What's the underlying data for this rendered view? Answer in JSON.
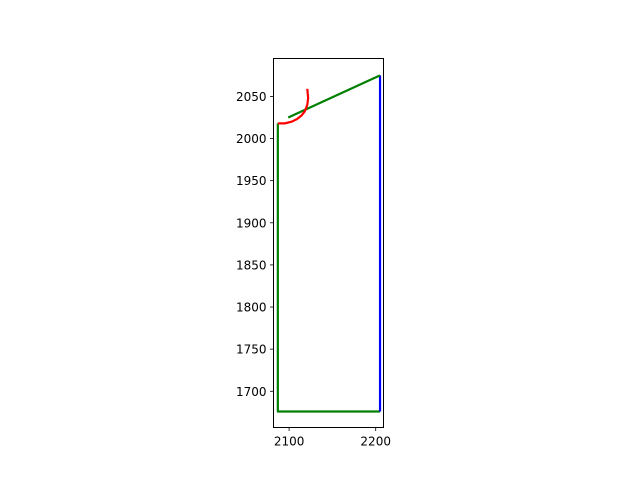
{
  "chart_data": {
    "type": "line",
    "title": "",
    "xlabel": "",
    "ylabel": "",
    "xlim": [
      2082,
      2209
    ],
    "ylim": [
      1657,
      2095
    ],
    "grid": false,
    "x_ticks": [
      {
        "value": 2100,
        "label": "2100"
      },
      {
        "value": 2200,
        "label": "2200"
      }
    ],
    "y_ticks": [
      {
        "value": 1700,
        "label": "1700"
      },
      {
        "value": 1750,
        "label": "1750"
      },
      {
        "value": 1800,
        "label": "1800"
      },
      {
        "value": 1850,
        "label": "1850"
      },
      {
        "value": 1900,
        "label": "1900"
      },
      {
        "value": 1950,
        "label": "1950"
      },
      {
        "value": 2000,
        "label": "2000"
      },
      {
        "value": 2050,
        "label": "2050"
      }
    ],
    "series": [
      {
        "color": "#008000",
        "points": [
          [
            2087,
            2018
          ],
          [
            2087,
            1676
          ],
          [
            2205,
            1676
          ]
        ]
      },
      {
        "color": "#0000ff",
        "points": [
          [
            2205,
            1676
          ],
          [
            2205,
            2075
          ]
        ]
      },
      {
        "color": "#008000",
        "points": [
          [
            2205,
            2075
          ],
          [
            2099,
            2025
          ]
        ]
      },
      {
        "color": "#ff0000",
        "points": [
          [
            2087,
            2018
          ],
          [
            2095,
            2018
          ],
          [
            2103,
            2020
          ],
          [
            2109,
            2023
          ],
          [
            2114,
            2027
          ],
          [
            2118,
            2032
          ],
          [
            2121,
            2040
          ],
          [
            2122,
            2048
          ],
          [
            2121,
            2059
          ]
        ]
      }
    ]
  }
}
